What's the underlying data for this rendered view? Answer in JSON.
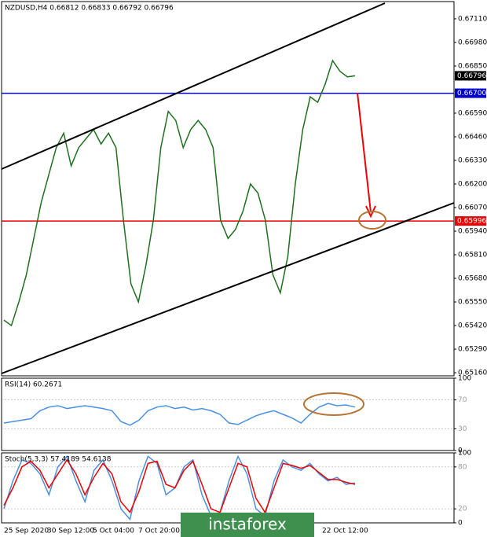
{
  "chart_data": [
    {
      "type": "line",
      "title": "NZDUSD,H4  0.66812 0.66833 0.66792 0.66796",
      "ylim": [
        0.65143,
        0.67205
      ],
      "yticks": [
        {
          "value": 0.6711,
          "label": "0.67110"
        },
        {
          "value": 0.6698,
          "label": "0.66980"
        },
        {
          "value": 0.6685,
          "label": "0.66850"
        },
        {
          "value": 0.6659,
          "label": "0.66590"
        },
        {
          "value": 0.6646,
          "label": "0.66460"
        },
        {
          "value": 0.6633,
          "label": "0.66330"
        },
        {
          "value": 0.662,
          "label": "0.66200"
        },
        {
          "value": 0.6607,
          "label": "0.66070"
        },
        {
          "value": 0.6594,
          "label": "0.65940"
        },
        {
          "value": 0.6581,
          "label": "0.65810"
        },
        {
          "value": 0.6568,
          "label": "0.65680"
        },
        {
          "value": 0.6555,
          "label": "0.65550"
        },
        {
          "value": 0.6542,
          "label": "0.65420"
        },
        {
          "value": 0.6529,
          "label": "0.65290"
        },
        {
          "value": 0.6516,
          "label": "0.65160"
        }
      ],
      "hlines": [
        {
          "value": 0.667,
          "label": "0.66700",
          "color": "#0000cc"
        },
        {
          "value": 0.65996,
          "label": "0.65996",
          "color": "#ee0000"
        },
        {
          "value": 0.66796,
          "label": "0.66796",
          "color": "#000000"
        }
      ],
      "series": [
        {
          "color": "#1f6f1f",
          "values": [
            0.6545,
            0.6542,
            0.6555,
            0.657,
            0.659,
            0.661,
            0.6625,
            0.664,
            0.6648,
            0.663,
            0.664,
            0.6645,
            0.665,
            0.6642,
            0.6648,
            0.664,
            0.66,
            0.6565,
            0.6555,
            0.6575,
            0.66,
            0.664,
            0.666,
            0.6655,
            0.664,
            0.665,
            0.6655,
            0.665,
            0.664,
            0.66,
            0.659,
            0.6595,
            0.6605,
            0.662,
            0.6615,
            0.66,
            0.657,
            0.656,
            0.658,
            0.662,
            0.665,
            0.6668,
            0.6665,
            0.6675,
            0.6688,
            0.6682,
            0.6679,
            0.66796
          ]
        }
      ]
    },
    {
      "type": "line",
      "title": "RSI(14) 60.2671",
      "ylim": [
        0,
        100
      ],
      "yticks": [
        100,
        70,
        30,
        0
      ],
      "series": [
        {
          "color": "#4a90e2",
          "values": [
            38,
            40,
            42,
            44,
            55,
            60,
            62,
            58,
            60,
            62,
            60,
            58,
            55,
            40,
            35,
            42,
            55,
            60,
            62,
            58,
            60,
            56,
            58,
            55,
            50,
            38,
            36,
            42,
            48,
            52,
            55,
            50,
            45,
            38,
            50,
            60,
            65,
            62,
            63,
            60
          ]
        }
      ]
    },
    {
      "type": "line",
      "title": "Stoch(5,3,3) 57.4189 54.6138",
      "ylim": [
        0,
        100
      ],
      "yticks": [
        100,
        80,
        20,
        0
      ],
      "series": [
        {
          "color": "#4a90e2",
          "values": [
            20,
            60,
            90,
            85,
            70,
            40,
            80,
            95,
            60,
            30,
            75,
            90,
            60,
            20,
            5,
            60,
            95,
            85,
            40,
            50,
            80,
            90,
            40,
            10,
            15,
            60,
            95,
            70,
            20,
            10,
            60,
            90,
            80,
            75,
            85,
            70,
            60,
            65,
            55,
            57
          ]
        },
        {
          "color": "#ee0000",
          "values": [
            25,
            50,
            80,
            88,
            75,
            50,
            70,
            90,
            70,
            40,
            65,
            85,
            70,
            30,
            15,
            45,
            85,
            88,
            55,
            50,
            75,
            88,
            55,
            20,
            15,
            50,
            85,
            80,
            35,
            15,
            50,
            85,
            82,
            78,
            82,
            72,
            62,
            62,
            58,
            55
          ]
        }
      ]
    }
  ],
  "x_labels": [
    "25 Sep 2020",
    "30 Sep 12:00",
    "5 Oct 04:00",
    "7 Oct 20:00",
    "22 Oct 12:00"
  ],
  "watermark": "instaforex"
}
